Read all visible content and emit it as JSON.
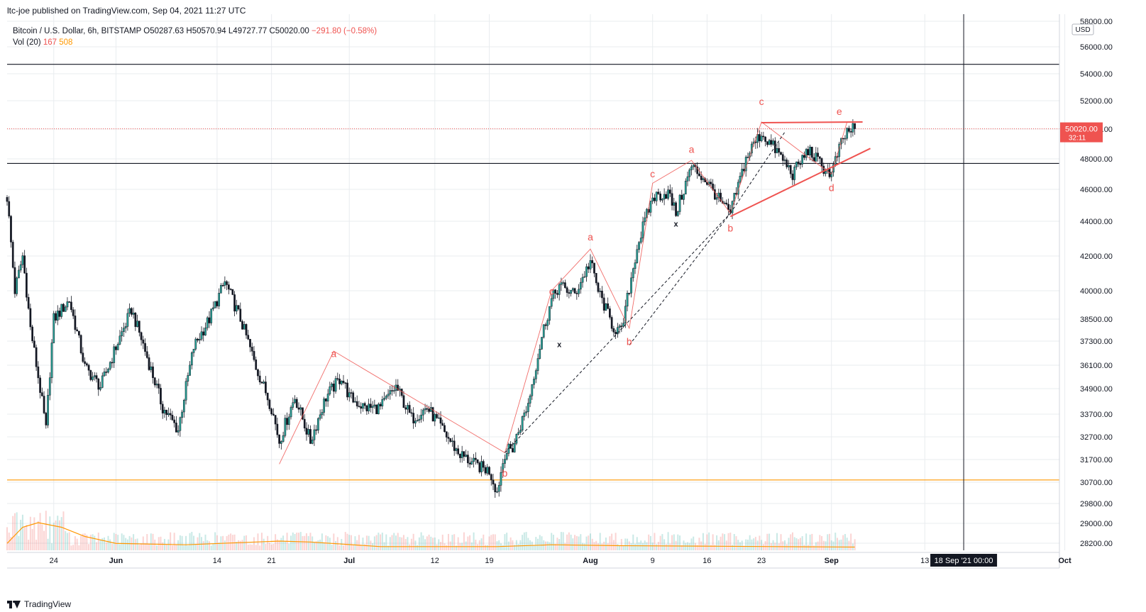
{
  "header": {
    "publisher_text": "ltc-joe published on TradingView.com, Sep 04, 2021 11:27 UTC"
  },
  "legend": {
    "symbol": "Bitcoin / U.S. Dollar, 6h, BITSTAMP",
    "open": "O50287.63",
    "high": "H50570.94",
    "low": "L49727.77",
    "close": "C50020.00",
    "change": "−291.80 (−0.58%)",
    "vol_label": "Vol (20)",
    "vol_value": "167",
    "vol_ma": "508"
  },
  "footer": {
    "brand": "TradingView"
  },
  "colors": {
    "up": "#26a69a",
    "down": "#131722",
    "wave_red": "#ef5350",
    "orange_line": "#ff9800",
    "price_tag": "#ef5350",
    "crosshair_tag": "#131722",
    "grid": "#e9ecef"
  },
  "chart_data": {
    "type": "candlestick",
    "currency": "USD",
    "last_price": "50020.00",
    "countdown": "32:11",
    "crosshair_time": "18 Sep '21  00:00",
    "y_ticks": [
      "58000.00",
      "56000.00",
      "54000.00",
      "52000.00",
      "50000.00",
      "48000.00",
      "46000.00",
      "44000.00",
      "42000.00",
      "40000.00",
      "38500.00",
      "37300.00",
      "36100.00",
      "34900.00",
      "33700.00",
      "32700.00",
      "31700.00",
      "30700.00",
      "29800.00",
      "29000.00",
      "28200.00"
    ],
    "y_tick_values": [
      58000,
      56000,
      54000,
      52000,
      50000,
      48000,
      46000,
      44000,
      42000,
      40000,
      38500,
      37300,
      36100,
      34900,
      33700,
      32700,
      31700,
      30700,
      29800,
      29000,
      28200
    ],
    "x_ticks": [
      {
        "label": "24",
        "date": "2021-05-24"
      },
      {
        "label": "Jun",
        "date": "2021-06-01"
      },
      {
        "label": "14",
        "date": "2021-06-14"
      },
      {
        "label": "21",
        "date": "2021-06-21"
      },
      {
        "label": "Jul",
        "date": "2021-07-01"
      },
      {
        "label": "12",
        "date": "2021-07-12"
      },
      {
        "label": "19",
        "date": "2021-07-19"
      },
      {
        "label": "Aug",
        "date": "2021-08-01"
      },
      {
        "label": "9",
        "date": "2021-08-09"
      },
      {
        "label": "16",
        "date": "2021-08-16"
      },
      {
        "label": "23",
        "date": "2021-08-23"
      },
      {
        "label": "Sep",
        "date": "2021-09-01"
      },
      {
        "label": "13",
        "date": "2021-09-13"
      },
      {
        "label": "Oct",
        "date": "2021-10-01"
      }
    ],
    "horizontal_lines": [
      {
        "price": 54700,
        "color": "#131722"
      },
      {
        "price": 47700,
        "color": "#131722"
      },
      {
        "price": 30800,
        "color": "#ff9800"
      }
    ],
    "vertical_line_date": "2021-09-18",
    "price_anchors": [
      [
        "2021-05-18",
        45500
      ],
      [
        "2021-05-19",
        40000
      ],
      [
        "2021-05-20",
        42000
      ],
      [
        "2021-05-21",
        38000
      ],
      [
        "2021-05-23",
        33000
      ],
      [
        "2021-05-24",
        38500
      ],
      [
        "2021-05-26",
        39500
      ],
      [
        "2021-05-28",
        36000
      ],
      [
        "2021-05-30",
        35000
      ],
      [
        "2021-06-01",
        37000
      ],
      [
        "2021-06-03",
        39000
      ],
      [
        "2021-06-05",
        36500
      ],
      [
        "2021-06-07",
        34000
      ],
      [
        "2021-06-09",
        33000
      ],
      [
        "2021-06-11",
        37000
      ],
      [
        "2021-06-13",
        38500
      ],
      [
        "2021-06-15",
        40500
      ],
      [
        "2021-06-17",
        38500
      ],
      [
        "2021-06-19",
        36000
      ],
      [
        "2021-06-21",
        34000
      ],
      [
        "2021-06-22",
        32500
      ],
      [
        "2021-06-24",
        34500
      ],
      [
        "2021-06-26",
        32500
      ],
      [
        "2021-06-28",
        34500
      ],
      [
        "2021-06-30",
        35500
      ],
      [
        "2021-07-01",
        34500
      ],
      [
        "2021-07-03",
        34000
      ],
      [
        "2021-07-05",
        34000
      ],
      [
        "2021-07-07",
        35000
      ],
      [
        "2021-07-09",
        33500
      ],
      [
        "2021-07-11",
        34000
      ],
      [
        "2021-07-13",
        33000
      ],
      [
        "2021-07-15",
        32000
      ],
      [
        "2021-07-17",
        31500
      ],
      [
        "2021-07-19",
        31200
      ],
      [
        "2021-07-20",
        30300
      ],
      [
        "2021-07-21",
        32000
      ],
      [
        "2021-07-22",
        32200
      ],
      [
        "2021-07-24",
        34200
      ],
      [
        "2021-07-26",
        38000
      ],
      [
        "2021-07-27",
        39500
      ],
      [
        "2021-07-28",
        40300
      ],
      [
        "2021-07-30",
        39800
      ],
      [
        "2021-08-01",
        41700
      ],
      [
        "2021-08-02",
        40000
      ],
      [
        "2021-08-04",
        38000
      ],
      [
        "2021-08-05",
        37800
      ],
      [
        "2021-08-07",
        42500
      ],
      [
        "2021-08-09",
        45500
      ],
      [
        "2021-08-11",
        45800
      ],
      [
        "2021-08-12",
        44500
      ],
      [
        "2021-08-14",
        47500
      ],
      [
        "2021-08-16",
        46500
      ],
      [
        "2021-08-18",
        45000
      ],
      [
        "2021-08-19",
        44500
      ],
      [
        "2021-08-21",
        48000
      ],
      [
        "2021-08-22",
        49000
      ],
      [
        "2021-08-23",
        49700
      ],
      [
        "2021-08-25",
        48500
      ],
      [
        "2021-08-27",
        47000
      ],
      [
        "2021-08-29",
        48600
      ],
      [
        "2021-08-31",
        47400
      ],
      [
        "2021-09-01",
        47000
      ],
      [
        "2021-09-02",
        48700
      ],
      [
        "2021-09-03",
        49800
      ],
      [
        "2021-09-04",
        50020
      ]
    ],
    "wave_labels": [
      {
        "text": "a",
        "date": "2021-06-29",
        "price": 36500,
        "color": "#ef5350"
      },
      {
        "text": "b",
        "date": "2021-07-21",
        "price": 30950,
        "color": "#ef5350"
      },
      {
        "text": "c",
        "date": "2021-07-27",
        "price": 39800,
        "color": "#ef5350"
      },
      {
        "text": "x",
        "date": "2021-07-28",
        "price": 37000,
        "color": "#131722"
      },
      {
        "text": "a",
        "date": "2021-08-01",
        "price": 42900,
        "color": "#ef5350"
      },
      {
        "text": "b",
        "date": "2021-08-06",
        "price": 37100,
        "color": "#ef5350"
      },
      {
        "text": "c",
        "date": "2021-08-09",
        "price": 46800,
        "color": "#ef5350"
      },
      {
        "text": "x",
        "date": "2021-08-12",
        "price": 43700,
        "color": "#131722"
      },
      {
        "text": "a",
        "date": "2021-08-14",
        "price": 48400,
        "color": "#ef5350"
      },
      {
        "text": "b",
        "date": "2021-08-19",
        "price": 43400,
        "color": "#ef5350"
      },
      {
        "text": "c",
        "date": "2021-08-23",
        "price": 51700,
        "color": "#ef5350"
      },
      {
        "text": "d",
        "date": "2021-09-01",
        "price": 45900,
        "color": "#ef5350"
      },
      {
        "text": "e",
        "date": "2021-09-02",
        "price": 51000,
        "color": "#ef5350"
      }
    ],
    "wave_lines": [
      [
        [
          "2021-06-22",
          31500
        ],
        [
          "2021-06-29",
          36800
        ],
        [
          "2021-07-21",
          32000
        ],
        [
          "2021-07-27",
          40000
        ],
        [
          "2021-08-01",
          42400
        ],
        [
          "2021-08-06",
          38000
        ],
        [
          "2021-08-09",
          46400
        ],
        [
          "2021-08-14",
          47900
        ],
        [
          "2021-08-19",
          44500
        ],
        [
          "2021-08-23",
          50500
        ],
        [
          "2021-08-28",
          48500
        ],
        [
          "2021-09-01",
          47000
        ],
        [
          "2021-09-03",
          50500
        ]
      ]
    ],
    "dashed_lines": [
      [
        [
          "2021-07-21",
          32000
        ],
        [
          "2021-08-19",
          44500
        ]
      ],
      [
        [
          "2021-08-19",
          44500
        ],
        [
          "2021-08-26",
          49800
        ]
      ],
      [
        [
          "2021-08-06",
          37100
        ],
        [
          "2021-08-19",
          44500
        ]
      ]
    ],
    "triangle_lines": [
      [
        [
          "2021-08-23",
          50450
        ],
        [
          "2021-09-05",
          50500
        ]
      ],
      [
        [
          "2021-08-19",
          44300
        ],
        [
          "2021-09-06",
          48700
        ]
      ]
    ],
    "volume_ma_anchors": [
      [
        "2021-05-18",
        0.15
      ],
      [
        "2021-05-20",
        0.5
      ],
      [
        "2021-05-22",
        0.6
      ],
      [
        "2021-05-25",
        0.5
      ],
      [
        "2021-05-28",
        0.3
      ],
      [
        "2021-06-01",
        0.15
      ],
      [
        "2021-06-10",
        0.12
      ],
      [
        "2021-06-22",
        0.2
      ],
      [
        "2021-06-26",
        0.18
      ],
      [
        "2021-07-05",
        0.08
      ],
      [
        "2021-07-20",
        0.08
      ],
      [
        "2021-07-27",
        0.12
      ],
      [
        "2021-08-05",
        0.1
      ],
      [
        "2021-08-15",
        0.09
      ],
      [
        "2021-08-25",
        0.08
      ],
      [
        "2021-09-04",
        0.07
      ]
    ]
  }
}
